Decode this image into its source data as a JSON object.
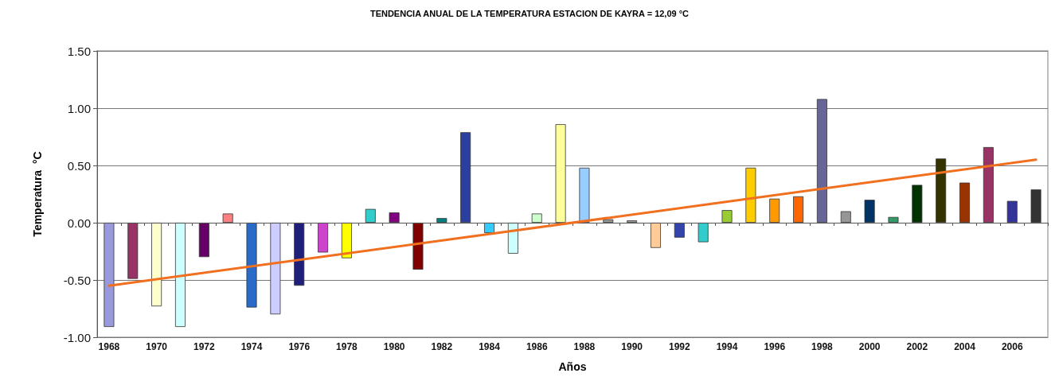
{
  "chart_data": {
    "type": "bar",
    "title": "TENDENCIA ANUAL DE LA TEMPERATURA ESTACION DE KAYRA = 12,09 °C",
    "xlabel": "Años",
    "ylabel": "Temperatura  °C",
    "x": [
      1968,
      1969,
      1970,
      1971,
      1972,
      1973,
      1974,
      1975,
      1976,
      1977,
      1978,
      1979,
      1980,
      1981,
      1982,
      1983,
      1984,
      1985,
      1986,
      1987,
      1988,
      1989,
      1990,
      1991,
      1992,
      1993,
      1994,
      1995,
      1996,
      1997,
      1998,
      1999,
      2000,
      2001,
      2002,
      2003,
      2004,
      2005,
      2006,
      2007
    ],
    "series": [
      {
        "values": [
          -0.91,
          -0.49,
          -0.73,
          -0.91,
          -0.3,
          0.08,
          -0.74,
          -0.8,
          -0.55,
          -0.26,
          -0.31,
          0.12,
          0.09,
          -0.41,
          0.04,
          0.79,
          -0.09,
          -0.27,
          0.08,
          0.86,
          0.48,
          0.03,
          0.02,
          -0.22,
          -0.13,
          -0.17,
          0.11,
          0.48,
          0.21,
          0.23,
          1.08,
          0.1,
          0.2,
          0.05,
          0.33,
          0.56,
          0.35,
          0.66,
          0.19,
          0.29
        ],
        "colors": [
          "#9999dd",
          "#993366",
          "#ffffcc",
          "#ccffff",
          "#660066",
          "#ff8080",
          "#2a6ac8",
          "#ccccff",
          "#1f1f7a",
          "#cc44cc",
          "#ffff00",
          "#33cccc",
          "#800080",
          "#800000",
          "#008080",
          "#2a3fa0",
          "#33ccff",
          "#ccffff",
          "#ccffcc",
          "#ffff99",
          "#99ccff",
          "#969696",
          "#a0a0a0",
          "#ffcc99",
          "#3344aa",
          "#33cccc",
          "#99cc33",
          "#ffcc00",
          "#ff9900",
          "#ff6600",
          "#666699",
          "#969696",
          "#003366",
          "#339966",
          "#003300",
          "#333300",
          "#993300",
          "#993366",
          "#333399",
          "#333333"
        ]
      },
      {
        "type": "line",
        "color": "#f07020",
        "x": [
          1968,
          2007
        ],
        "values": [
          -0.55,
          0.55
        ]
      }
    ],
    "xlim": [
      1967.5,
      2007.5
    ],
    "xticks": [
      1968,
      1970,
      1972,
      1974,
      1976,
      1978,
      1980,
      1982,
      1984,
      1986,
      1988,
      1990,
      1992,
      1994,
      1996,
      1998,
      2000,
      2002,
      2004,
      2006
    ],
    "ylim": [
      -1,
      1.5
    ],
    "yticks": [
      {
        "value": -1,
        "label": "-1.00"
      },
      {
        "value": -0.5,
        "label": "-0.50"
      },
      {
        "value": 0,
        "label": "0.00"
      },
      {
        "value": 0.5,
        "label": "0.50"
      },
      {
        "value": 1,
        "label": "1.00"
      },
      {
        "value": 1.5,
        "label": "1.50"
      }
    ],
    "grid": "y",
    "marker": "none"
  }
}
